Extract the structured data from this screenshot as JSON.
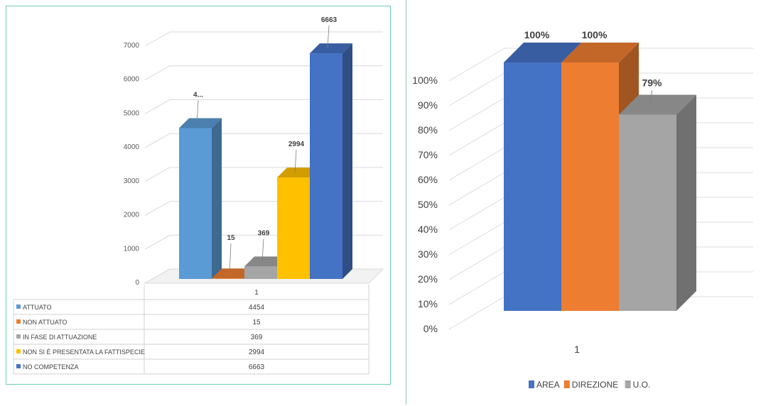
{
  "chart_data": [
    {
      "type": "bar",
      "categories": [
        "1"
      ],
      "series": [
        {
          "name": "ATTUATO",
          "values": [
            4454
          ],
          "color": "#5b9bd5",
          "label": "4..."
        },
        {
          "name": "NON ATTUATO",
          "values": [
            15
          ],
          "color": "#ed7d31",
          "label": "15"
        },
        {
          "name": "IN FASE DI ATTUAZIONE",
          "values": [
            369
          ],
          "color": "#a5a5a5",
          "label": "369"
        },
        {
          "name": "NON SI È PRESENTATA LA FATTISPECIE",
          "values": [
            2994
          ],
          "color": "#ffc000",
          "label": "2994"
        },
        {
          "name": "NO COMPETENZA",
          "values": [
            6663
          ],
          "color": "#4472c4",
          "label": "6663"
        }
      ],
      "y_ticks": [
        "0",
        "1000",
        "2000",
        "3000",
        "4000",
        "5000",
        "6000",
        "7000"
      ],
      "ylim": [
        0,
        7000
      ],
      "data_table": {
        "header": "1",
        "rows": [
          {
            "label": "ATTUATO",
            "value": "4454"
          },
          {
            "label": "NON ATTUATO",
            "value": "15"
          },
          {
            "label": "IN FASE DI ATTUAZIONE",
            "value": "369"
          },
          {
            "label": "NON SI È PRESENTATA LA FATTISPECIE",
            "value": "2994"
          },
          {
            "label": "NO COMPETENZA",
            "value": "6663"
          }
        ]
      },
      "grid": true,
      "three_d": true
    },
    {
      "type": "bar",
      "categories": [
        "1"
      ],
      "series": [
        {
          "name": "AREA",
          "values": [
            100
          ],
          "color": "#4472c4",
          "label": "100%"
        },
        {
          "name": "DIREZIONE",
          "values": [
            100
          ],
          "color": "#ed7d31",
          "label": "100%"
        },
        {
          "name": "U.O.",
          "values": [
            79
          ],
          "color": "#a5a5a5",
          "label": "79%"
        }
      ],
      "y_ticks": [
        "0%",
        "10%",
        "20%",
        "30%",
        "40%",
        "50%",
        "60%",
        "70%",
        "80%",
        "90%",
        "100%"
      ],
      "ylim": [
        0,
        100
      ],
      "x_label": "1",
      "legend_position": "bottom",
      "grid": true,
      "three_d": true
    }
  ]
}
